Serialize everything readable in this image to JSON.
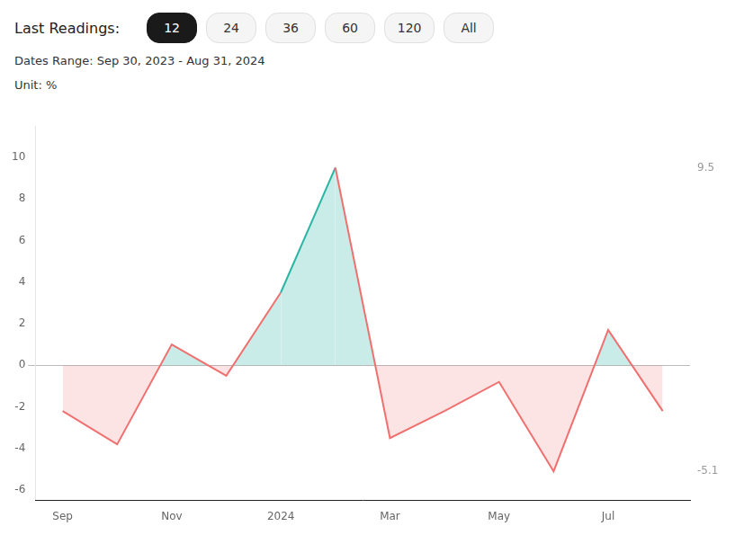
{
  "chart_data": {
    "type": "line",
    "title": "Last Readings:",
    "buttons": [
      "12",
      "24",
      "36",
      "60",
      "120",
      "All"
    ],
    "active_button": "12",
    "subtitle": [
      "Dates Range: Sep 30, 2023 - Aug 31, 2024",
      "Unit: %"
    ],
    "categories": [
      "Sep",
      null,
      "Nov",
      null,
      "2024",
      null,
      "Mar",
      null,
      "May",
      null,
      "Jul",
      null
    ],
    "values": [
      -2.2,
      -3.8,
      1.0,
      -0.5,
      3.5,
      9.5,
      -3.5,
      -2.2,
      -0.8,
      -5.1,
      1.7,
      -2.2
    ],
    "color": "#2ab5a5",
    "negative_color": "#f07070",
    "ylim": [
      -6.5,
      11.5
    ],
    "yticks": [
      -6,
      -4,
      -2,
      0,
      2,
      4,
      6,
      8,
      10
    ],
    "grid": false,
    "annotations": [
      {
        "text": "9.5",
        "y": 9.5
      },
      {
        "text": "-5.1",
        "y": -5.1
      }
    ]
  }
}
